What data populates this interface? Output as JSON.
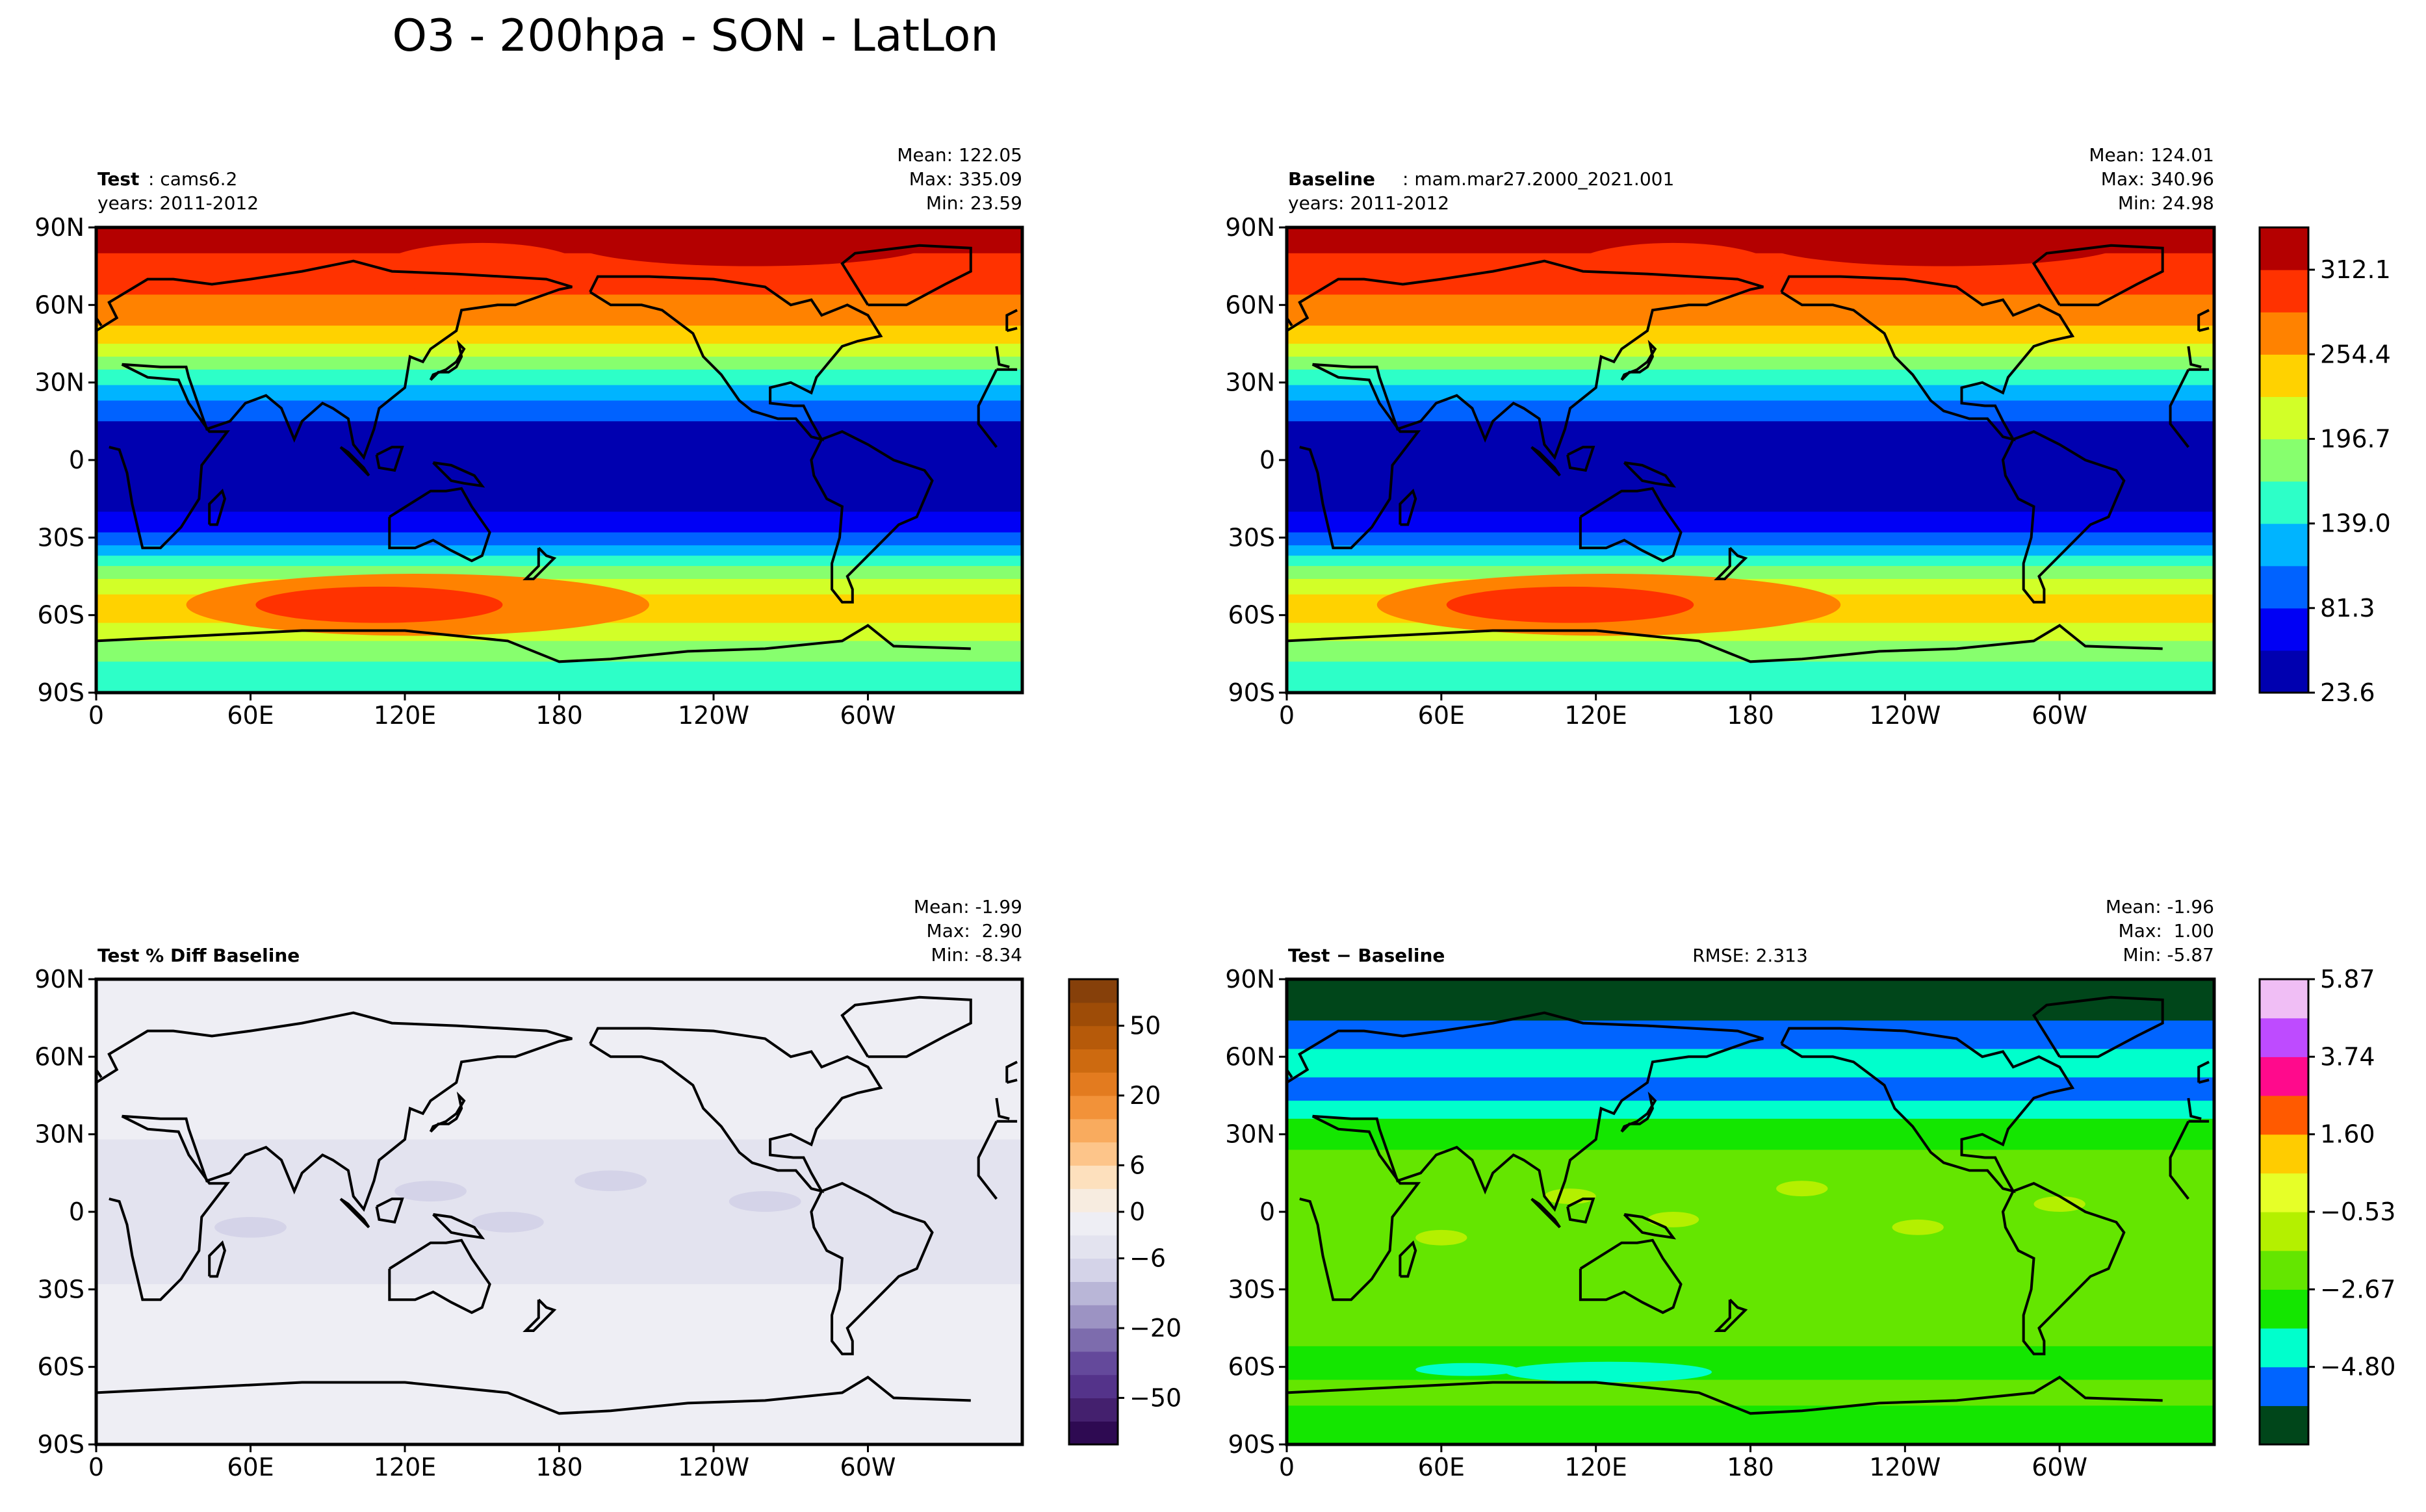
{
  "figure_title": "O3 - 200hpa - SON - LatLon",
  "chart_data": [
    {
      "type": "heatmap",
      "panel": "test",
      "label_bold": "Test",
      "label_rest": ": cams6.2",
      "years": "years: 2011-2012",
      "stats": [
        "Mean: 122.05",
        "Max: 335.09",
        "Min: 23.59"
      ],
      "xticks": [
        "0",
        "60E",
        "120E",
        "180",
        "120W",
        "60W"
      ],
      "yticks": [
        "90N",
        "60N",
        "30N",
        "0",
        "30S",
        "60S",
        "90S"
      ],
      "xlim": [
        0,
        360
      ],
      "ylim": [
        -90,
        90
      ],
      "field": "o3_zonal",
      "colorbar": "shared-o3"
    },
    {
      "type": "heatmap",
      "panel": "baseline",
      "label_bold": "Baseline",
      "label_rest": ": mam.mar27.2000_2021.001",
      "years": "years: 2011-2012",
      "stats": [
        "Mean: 124.01",
        "Max: 340.96",
        "Min: 24.98"
      ],
      "xticks": [
        "0",
        "60E",
        "120E",
        "180",
        "120W",
        "60W"
      ],
      "yticks": [
        "90N",
        "60N",
        "30N",
        "0",
        "30S",
        "60S",
        "90S"
      ],
      "xlim": [
        0,
        360
      ],
      "ylim": [
        -90,
        90
      ],
      "field": "o3_zonal",
      "colorbar": {
        "ticks": [
          "312.1",
          "254.4",
          "196.7",
          "139.0",
          "81.3",
          "23.6"
        ],
        "colors": [
          "#0000b0",
          "#0000f5",
          "#0062ff",
          "#00b4ff",
          "#2dffc8",
          "#87ff6e",
          "#d2ff28",
          "#ffd200",
          "#ff8200",
          "#ff3200",
          "#b40000"
        ]
      }
    },
    {
      "type": "heatmap",
      "panel": "pct-diff",
      "label_bold": "Test % Diff Baseline",
      "stats": [
        "Mean: -1.99",
        "Max:  2.90",
        "Min: -8.34"
      ],
      "xticks": [
        "0",
        "60E",
        "120E",
        "180",
        "120W",
        "60W"
      ],
      "yticks": [
        "90N",
        "60N",
        "30N",
        "0",
        "30S",
        "60S",
        "90S"
      ],
      "xlim": [
        0,
        360
      ],
      "ylim": [
        -90,
        90
      ],
      "field": "pct_diff",
      "colorbar": {
        "ticks": [
          "50",
          "20",
          "6",
          "0",
          "−6",
          "−20",
          "−50"
        ],
        "colors": [
          "#2e0a52",
          "#44206e",
          "#54338a",
          "#64499b",
          "#7d6cad",
          "#9c93c3",
          "#b9b6d7",
          "#d4d3e8",
          "#e3e3ef",
          "#eeeef4",
          "#f7ece0",
          "#fde0bd",
          "#fdc58a",
          "#f9ab5e",
          "#f29239",
          "#e37b1f",
          "#cd6a10",
          "#b65a0a",
          "#9e4c07",
          "#86400a"
        ]
      }
    },
    {
      "type": "heatmap",
      "panel": "diff",
      "label_bold": "Test − Baseline",
      "rmse": "RMSE: 2.313",
      "stats": [
        "Mean: -1.96",
        "Max:  1.00",
        "Min: -5.87"
      ],
      "xticks": [
        "0",
        "60E",
        "120E",
        "180",
        "120W",
        "60W"
      ],
      "yticks": [
        "90N",
        "60N",
        "30N",
        "0",
        "30S",
        "60S",
        "90S"
      ],
      "xlim": [
        0,
        360
      ],
      "ylim": [
        -90,
        90
      ],
      "field": "diff",
      "colorbar": {
        "ticks": [
          "5.87",
          "3.74",
          "1.60",
          "−0.53",
          "−2.67",
          "−4.80"
        ],
        "colors": [
          "#00461a",
          "#0064ff",
          "#00ffcc",
          "#14e600",
          "#64e600",
          "#b4f000",
          "#e6ff28",
          "#ffcc00",
          "#ff5a00",
          "#ff0a8c",
          "#be4bff",
          "#f0bef5"
        ]
      }
    }
  ]
}
